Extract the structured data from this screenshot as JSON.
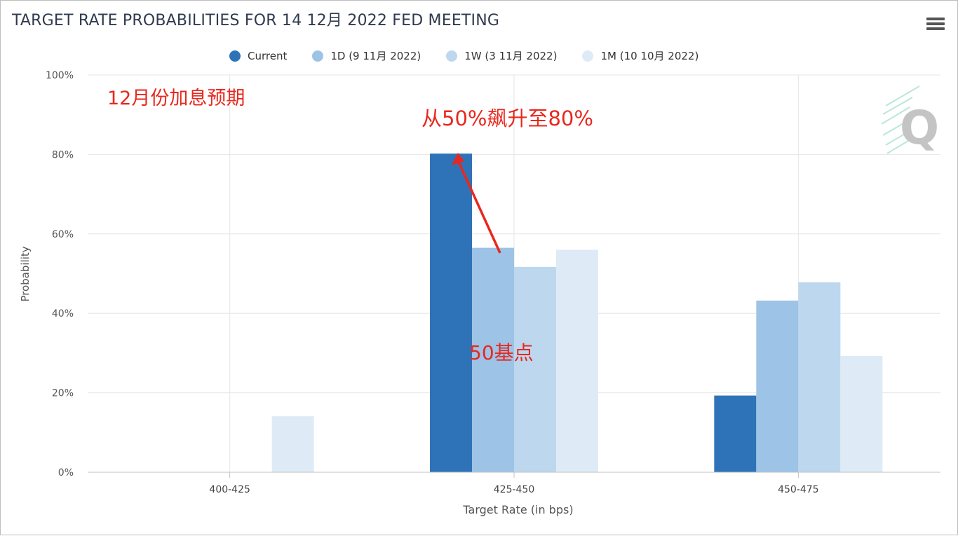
{
  "header": {
    "title": "TARGET RATE PROBABILITIES FOR 14 12月 2022 FED MEETING",
    "menu_icon": "hamburger-menu-icon"
  },
  "watermark": {
    "text": "Q",
    "icon": "quikstrike-logo"
  },
  "annotations": {
    "top_left": "12月份加息预期",
    "arrow_label": "从50%飙升至80%",
    "bar_label": "50基点",
    "color": "#e8281e"
  },
  "chart_data": {
    "type": "bar",
    "title": "TARGET RATE PROBABILITIES FOR 14 12月 2022 FED MEETING",
    "xlabel": "Target Rate (in bps)",
    "ylabel": "Probability",
    "categories": [
      "400-425",
      "425-450",
      "450-475"
    ],
    "ylim": [
      0,
      100
    ],
    "yticks": [
      "0%",
      "20%",
      "40%",
      "60%",
      "80%",
      "100%"
    ],
    "grid": true,
    "legend_position": "top",
    "series": [
      {
        "name": "Current",
        "color": "#2e73b8",
        "values": [
          0,
          80.2,
          19.3
        ]
      },
      {
        "name": "1D (9 11月 2022)",
        "color": "#9dc3e6",
        "values": [
          0,
          56.5,
          43.2
        ]
      },
      {
        "name": "1W (3 11月 2022)",
        "color": "#bdd7ee",
        "values": [
          0,
          51.7,
          47.8
        ]
      },
      {
        "name": "1M (10 10月 2022)",
        "color": "#deebf7",
        "values": [
          14.1,
          56.0,
          29.3
        ]
      }
    ]
  }
}
